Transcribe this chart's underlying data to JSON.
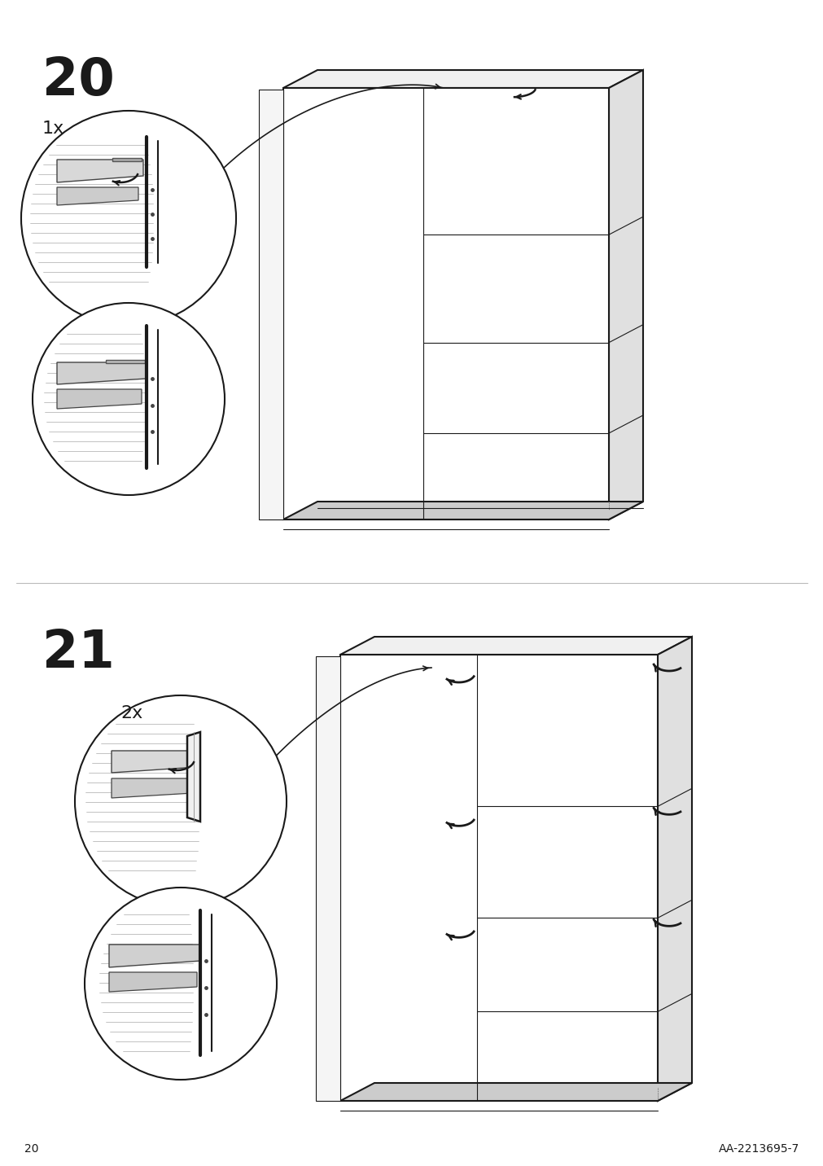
{
  "page_number": "20",
  "article_code": "AA-2213695-7",
  "background_color": "#ffffff",
  "line_color": "#1a1a1a",
  "figsize": [
    10.12,
    14.32
  ],
  "dpi": 100
}
